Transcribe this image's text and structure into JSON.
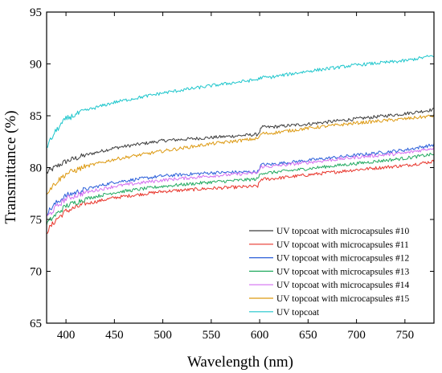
{
  "chart_data": {
    "type": "line",
    "title": "",
    "xlabel": "Wavelength (nm)",
    "ylabel": "Transmittance (%)",
    "xlim": [
      380,
      780
    ],
    "ylim": [
      65,
      95
    ],
    "x_ticks": [
      400,
      450,
      500,
      550,
      600,
      650,
      700,
      750
    ],
    "y_ticks": [
      65,
      70,
      75,
      80,
      85,
      90,
      95
    ],
    "grid": false,
    "legend_position": "bottom-right",
    "series": [
      {
        "name": "UV topcoat with microcapsules #10",
        "color": "#3c3c3c",
        "x": [
          380,
          390,
          400,
          420,
          450,
          500,
          550,
          598,
          600,
          602,
          610,
          650,
          700,
          750,
          780
        ],
        "y": [
          79.5,
          80.1,
          80.6,
          81.2,
          81.9,
          82.6,
          82.9,
          83.2,
          83.5,
          83.9,
          83.9,
          84.2,
          84.7,
          85.2,
          85.6
        ]
      },
      {
        "name": "UV topcoat with microcapsules #11",
        "color": "#e8352b",
        "x": [
          380,
          390,
          400,
          420,
          450,
          500,
          550,
          598,
          600,
          602,
          610,
          650,
          700,
          750,
          780
        ],
        "y": [
          73.8,
          75.0,
          75.8,
          76.5,
          77.1,
          77.7,
          78.0,
          78.2,
          78.6,
          78.9,
          78.9,
          79.3,
          79.8,
          80.2,
          80.6
        ]
      },
      {
        "name": "UV topcoat with microcapsules #12",
        "color": "#2b5fd9",
        "x": [
          380,
          390,
          400,
          420,
          450,
          500,
          550,
          598,
          600,
          602,
          610,
          650,
          700,
          750,
          780
        ],
        "y": [
          75.6,
          76.6,
          77.3,
          77.9,
          78.6,
          79.2,
          79.5,
          79.6,
          80.0,
          80.3,
          80.3,
          80.7,
          81.2,
          81.7,
          82.2
        ]
      },
      {
        "name": "UV topcoat with microcapsules #13",
        "color": "#22aa60",
        "x": [
          380,
          390,
          400,
          420,
          450,
          500,
          550,
          598,
          600,
          602,
          610,
          650,
          700,
          750,
          780
        ],
        "y": [
          74.6,
          75.5,
          76.3,
          77.0,
          77.6,
          78.2,
          78.6,
          78.9,
          79.3,
          79.5,
          79.5,
          79.9,
          80.4,
          80.9,
          81.3
        ]
      },
      {
        "name": "UV topcoat with microcapsules #14",
        "color": "#d46ff0",
        "x": [
          380,
          390,
          400,
          420,
          450,
          500,
          550,
          598,
          600,
          602,
          610,
          650,
          700,
          750,
          780
        ],
        "y": [
          75.2,
          76.2,
          77.0,
          77.6,
          78.2,
          78.8,
          79.2,
          79.5,
          79.8,
          80.1,
          80.1,
          80.5,
          81.0,
          81.4,
          81.9
        ]
      },
      {
        "name": "UV topcoat with microcapsules #15",
        "color": "#dd9a12",
        "x": [
          380,
          390,
          400,
          420,
          450,
          500,
          550,
          598,
          600,
          602,
          610,
          650,
          700,
          750,
          780
        ],
        "y": [
          77.6,
          78.6,
          79.4,
          80.1,
          80.8,
          81.6,
          82.3,
          82.8,
          83.0,
          83.3,
          83.3,
          83.8,
          84.3,
          84.7,
          85.0
        ]
      },
      {
        "name": "UV topcoat",
        "color": "#1ec6cc",
        "x": [
          380,
          390,
          400,
          420,
          450,
          500,
          550,
          598,
          600,
          602,
          610,
          650,
          700,
          750,
          780
        ],
        "y": [
          82.0,
          83.6,
          84.7,
          85.5,
          86.3,
          87.2,
          87.9,
          88.5,
          88.6,
          88.7,
          88.7,
          89.3,
          89.9,
          90.3,
          90.8
        ]
      }
    ]
  }
}
